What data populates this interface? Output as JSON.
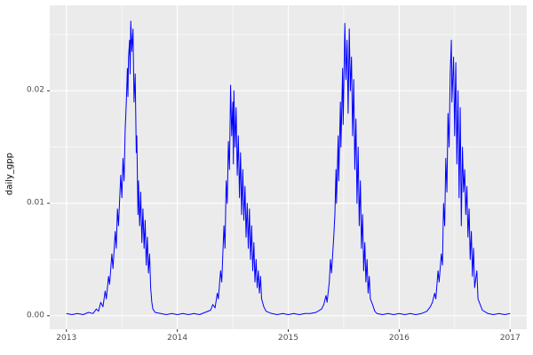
{
  "chart_data": {
    "type": "line",
    "title": "",
    "xlabel": "",
    "ylabel": "daily_gpp",
    "xlim": [
      2012.85,
      2017.15
    ],
    "ylim": [
      -0.0012,
      0.0276
    ],
    "x_tick_values": [
      2013,
      2014,
      2015,
      2016,
      2017
    ],
    "x_tick_labels": [
      "2013",
      "2014",
      "2015",
      "2016",
      "2017"
    ],
    "y_tick_values": [
      0.0,
      0.01,
      0.02
    ],
    "y_tick_labels": [
      "0.00",
      "0.01",
      "0.02"
    ],
    "x_minor_ticks": [
      2013.5,
      2014.5,
      2015.5,
      2016.5
    ],
    "y_minor_ticks": [
      0.005,
      0.015,
      0.025
    ],
    "grid": true,
    "legend": "none",
    "line_color": "#0000FF",
    "panel_background": "#EBEBEB",
    "grid_color": "#FFFFFF",
    "tick_mark_color": "#333333",
    "tick_label_color": "#4d4d4d",
    "series": [
      {
        "name": "daily_gpp",
        "points": [
          [
            2013.0,
            0.0002
          ],
          [
            2013.05,
            0.0001
          ],
          [
            2013.1,
            0.0002
          ],
          [
            2013.15,
            0.0001
          ],
          [
            2013.2,
            0.0003
          ],
          [
            2013.24,
            0.0002
          ],
          [
            2013.27,
            0.0006
          ],
          [
            2013.29,
            0.0004
          ],
          [
            2013.31,
            0.0012
          ],
          [
            2013.33,
            0.0008
          ],
          [
            2013.35,
            0.0022
          ],
          [
            2013.36,
            0.0015
          ],
          [
            2013.38,
            0.0035
          ],
          [
            2013.39,
            0.0028
          ],
          [
            2013.41,
            0.0055
          ],
          [
            2013.42,
            0.0042
          ],
          [
            2013.44,
            0.0075
          ],
          [
            2013.45,
            0.006
          ],
          [
            2013.46,
            0.0095
          ],
          [
            2013.47,
            0.008
          ],
          [
            2013.49,
            0.0125
          ],
          [
            2013.5,
            0.0105
          ],
          [
            2013.51,
            0.014
          ],
          [
            2013.52,
            0.012
          ],
          [
            2013.53,
            0.0165
          ],
          [
            2013.54,
            0.019
          ],
          [
            2013.55,
            0.022
          ],
          [
            2013.555,
            0.0195
          ],
          [
            2013.56,
            0.023
          ],
          [
            2013.57,
            0.0245
          ],
          [
            2013.575,
            0.0215
          ],
          [
            2013.58,
            0.0262
          ],
          [
            2013.59,
            0.0235
          ],
          [
            2013.6,
            0.0255
          ],
          [
            2013.61,
            0.019
          ],
          [
            2013.62,
            0.0215
          ],
          [
            2013.63,
            0.0145
          ],
          [
            2013.635,
            0.016
          ],
          [
            2013.645,
            0.009
          ],
          [
            2013.65,
            0.012
          ],
          [
            2013.66,
            0.008
          ],
          [
            2013.67,
            0.011
          ],
          [
            2013.68,
            0.0065
          ],
          [
            2013.69,
            0.0095
          ],
          [
            2013.7,
            0.006
          ],
          [
            2013.71,
            0.0085
          ],
          [
            2013.72,
            0.0045
          ],
          [
            2013.73,
            0.007
          ],
          [
            2013.74,
            0.0038
          ],
          [
            2013.75,
            0.0055
          ],
          [
            2013.76,
            0.0025
          ],
          [
            2013.77,
            0.0012
          ],
          [
            2013.78,
            0.0006
          ],
          [
            2013.8,
            0.0003
          ],
          [
            2013.85,
            0.0002
          ],
          [
            2013.9,
            0.0001
          ],
          [
            2013.95,
            0.0002
          ],
          [
            2014.0,
            0.0001
          ],
          [
            2014.05,
            0.0002
          ],
          [
            2014.1,
            0.0001
          ],
          [
            2014.15,
            0.0002
          ],
          [
            2014.2,
            0.0001
          ],
          [
            2014.25,
            0.0003
          ],
          [
            2014.3,
            0.0005
          ],
          [
            2014.32,
            0.001
          ],
          [
            2014.34,
            0.0007
          ],
          [
            2014.36,
            0.002
          ],
          [
            2014.37,
            0.0015
          ],
          [
            2014.39,
            0.004
          ],
          [
            2014.4,
            0.003
          ],
          [
            2014.42,
            0.008
          ],
          [
            2014.43,
            0.006
          ],
          [
            2014.44,
            0.012
          ],
          [
            2014.45,
            0.01
          ],
          [
            2014.46,
            0.0155
          ],
          [
            2014.47,
            0.013
          ],
          [
            2014.48,
            0.0205
          ],
          [
            2014.49,
            0.016
          ],
          [
            2014.5,
            0.019
          ],
          [
            2014.505,
            0.0135
          ],
          [
            2014.51,
            0.02
          ],
          [
            2014.52,
            0.015
          ],
          [
            2014.53,
            0.0185
          ],
          [
            2014.54,
            0.0125
          ],
          [
            2014.55,
            0.016
          ],
          [
            2014.56,
            0.0105
          ],
          [
            2014.57,
            0.0145
          ],
          [
            2014.58,
            0.009
          ],
          [
            2014.59,
            0.013
          ],
          [
            2014.6,
            0.0085
          ],
          [
            2014.61,
            0.0115
          ],
          [
            2014.62,
            0.007
          ],
          [
            2014.63,
            0.01
          ],
          [
            2014.64,
            0.006
          ],
          [
            2014.65,
            0.0095
          ],
          [
            2014.66,
            0.005
          ],
          [
            2014.67,
            0.008
          ],
          [
            2014.68,
            0.004
          ],
          [
            2014.69,
            0.0065
          ],
          [
            2014.7,
            0.003
          ],
          [
            2014.71,
            0.005
          ],
          [
            2014.72,
            0.0025
          ],
          [
            2014.73,
            0.004
          ],
          [
            2014.74,
            0.002
          ],
          [
            2014.75,
            0.0035
          ],
          [
            2014.76,
            0.0015
          ],
          [
            2014.78,
            0.0008
          ],
          [
            2014.8,
            0.0004
          ],
          [
            2014.85,
            0.0002
          ],
          [
            2014.9,
            0.0001
          ],
          [
            2014.95,
            0.0002
          ],
          [
            2015.0,
            0.0001
          ],
          [
            2015.05,
            0.0002
          ],
          [
            2015.1,
            0.0001
          ],
          [
            2015.15,
            0.0002
          ],
          [
            2015.2,
            0.0002
          ],
          [
            2015.25,
            0.0003
          ],
          [
            2015.3,
            0.0006
          ],
          [
            2015.32,
            0.001
          ],
          [
            2015.34,
            0.0018
          ],
          [
            2015.35,
            0.0012
          ],
          [
            2015.37,
            0.003
          ],
          [
            2015.38,
            0.005
          ],
          [
            2015.39,
            0.0038
          ],
          [
            2015.41,
            0.007
          ],
          [
            2015.42,
            0.009
          ],
          [
            2015.43,
            0.013
          ],
          [
            2015.435,
            0.01
          ],
          [
            2015.45,
            0.016
          ],
          [
            2015.455,
            0.012
          ],
          [
            2015.47,
            0.019
          ],
          [
            2015.475,
            0.015
          ],
          [
            2015.49,
            0.022
          ],
          [
            2015.495,
            0.017
          ],
          [
            2015.51,
            0.026
          ],
          [
            2015.52,
            0.021
          ],
          [
            2015.53,
            0.0245
          ],
          [
            2015.54,
            0.018
          ],
          [
            2015.55,
            0.0255
          ],
          [
            2015.56,
            0.02
          ],
          [
            2015.57,
            0.023
          ],
          [
            2015.58,
            0.016
          ],
          [
            2015.59,
            0.021
          ],
          [
            2015.6,
            0.013
          ],
          [
            2015.61,
            0.0175
          ],
          [
            2015.62,
            0.01
          ],
          [
            2015.63,
            0.015
          ],
          [
            2015.64,
            0.008
          ],
          [
            2015.65,
            0.012
          ],
          [
            2015.66,
            0.006
          ],
          [
            2015.67,
            0.009
          ],
          [
            2015.68,
            0.004
          ],
          [
            2015.69,
            0.0065
          ],
          [
            2015.7,
            0.003
          ],
          [
            2015.71,
            0.005
          ],
          [
            2015.72,
            0.002
          ],
          [
            2015.73,
            0.0035
          ],
          [
            2015.74,
            0.0015
          ],
          [
            2015.76,
            0.001
          ],
          [
            2015.78,
            0.0004
          ],
          [
            2015.8,
            0.0002
          ],
          [
            2015.85,
            0.0001
          ],
          [
            2015.9,
            0.0002
          ],
          [
            2015.95,
            0.0001
          ],
          [
            2016.0,
            0.0002
          ],
          [
            2016.05,
            0.0001
          ],
          [
            2016.1,
            0.0002
          ],
          [
            2016.15,
            0.0001
          ],
          [
            2016.2,
            0.0002
          ],
          [
            2016.25,
            0.0004
          ],
          [
            2016.28,
            0.0008
          ],
          [
            2016.3,
            0.0012
          ],
          [
            2016.32,
            0.002
          ],
          [
            2016.33,
            0.0015
          ],
          [
            2016.35,
            0.004
          ],
          [
            2016.36,
            0.003
          ],
          [
            2016.38,
            0.0055
          ],
          [
            2016.39,
            0.0045
          ],
          [
            2016.4,
            0.01
          ],
          [
            2016.41,
            0.008
          ],
          [
            2016.42,
            0.014
          ],
          [
            2016.43,
            0.011
          ],
          [
            2016.44,
            0.018
          ],
          [
            2016.45,
            0.015
          ],
          [
            2016.46,
            0.0215
          ],
          [
            2016.47,
            0.0245
          ],
          [
            2016.475,
            0.019
          ],
          [
            2016.49,
            0.023
          ],
          [
            2016.5,
            0.016
          ],
          [
            2016.51,
            0.0225
          ],
          [
            2016.52,
            0.0135
          ],
          [
            2016.53,
            0.02
          ],
          [
            2016.54,
            0.0105
          ],
          [
            2016.55,
            0.0185
          ],
          [
            2016.56,
            0.008
          ],
          [
            2016.57,
            0.015
          ],
          [
            2016.58,
            0.011
          ],
          [
            2016.59,
            0.013
          ],
          [
            2016.6,
            0.009
          ],
          [
            2016.61,
            0.0115
          ],
          [
            2016.62,
            0.007
          ],
          [
            2016.63,
            0.0095
          ],
          [
            2016.64,
            0.005
          ],
          [
            2016.65,
            0.0075
          ],
          [
            2016.66,
            0.0035
          ],
          [
            2016.67,
            0.006
          ],
          [
            2016.68,
            0.0025
          ],
          [
            2016.7,
            0.004
          ],
          [
            2016.71,
            0.0015
          ],
          [
            2016.73,
            0.001
          ],
          [
            2016.75,
            0.0005
          ],
          [
            2016.8,
            0.0002
          ],
          [
            2016.85,
            0.0001
          ],
          [
            2016.9,
            0.0002
          ],
          [
            2016.95,
            0.0001
          ],
          [
            2017.0,
            0.0002
          ]
        ]
      }
    ]
  }
}
